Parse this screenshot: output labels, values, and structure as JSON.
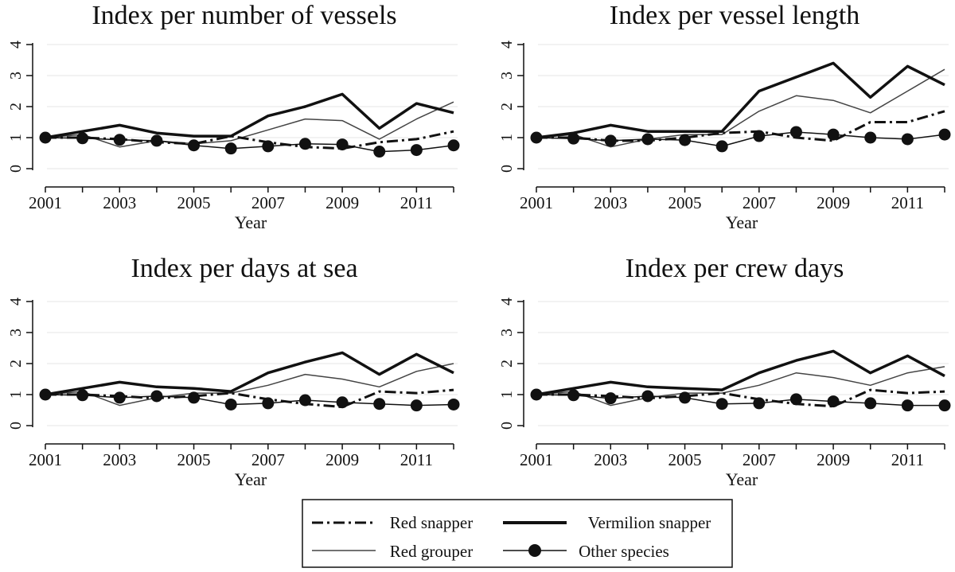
{
  "chart_data": [
    {
      "type": "line",
      "title": "Index per number of vessels",
      "xlabel": "Year",
      "ylabel": "",
      "x": [
        2001,
        2002,
        2003,
        2004,
        2005,
        2006,
        2007,
        2008,
        2009,
        2010,
        2011,
        2012
      ],
      "xticks": [
        "2001",
        "2003",
        "2005",
        "2007",
        "2009",
        "2011"
      ],
      "yticks": [
        "0",
        "1",
        "2",
        "3",
        "4"
      ],
      "ylim": [
        0,
        4
      ],
      "series": [
        {
          "name": "Red snapper",
          "values": [
            1.0,
            1.0,
            0.95,
            0.85,
            0.8,
            1.05,
            0.85,
            0.7,
            0.65,
            0.85,
            0.95,
            1.2
          ]
        },
        {
          "name": "Vermilion snapper",
          "values": [
            1.0,
            1.2,
            1.4,
            1.15,
            1.05,
            1.05,
            1.7,
            2.0,
            2.4,
            1.3,
            2.1,
            1.8
          ]
        },
        {
          "name": "Red grouper",
          "values": [
            1.0,
            1.1,
            0.7,
            0.9,
            0.8,
            0.9,
            1.25,
            1.6,
            1.55,
            0.95,
            1.6,
            2.15
          ]
        },
        {
          "name": "Other species",
          "values": [
            1.0,
            0.98,
            0.93,
            0.9,
            0.75,
            0.65,
            0.72,
            0.8,
            0.78,
            0.55,
            0.6,
            0.75
          ]
        }
      ]
    },
    {
      "type": "line",
      "title": "Index per vessel length",
      "xlabel": "Year",
      "ylabel": "",
      "x": [
        2001,
        2002,
        2003,
        2004,
        2005,
        2006,
        2007,
        2008,
        2009,
        2010,
        2011,
        2012
      ],
      "xticks": [
        "2001",
        "2003",
        "2005",
        "2007",
        "2009",
        "2011"
      ],
      "yticks": [
        "0",
        "1",
        "2",
        "3",
        "4"
      ],
      "ylim": [
        0,
        4
      ],
      "series": [
        {
          "name": "Red snapper",
          "values": [
            1.0,
            1.0,
            0.9,
            0.9,
            1.0,
            1.15,
            1.2,
            1.0,
            0.9,
            1.5,
            1.5,
            1.85
          ]
        },
        {
          "name": "Vermilion snapper",
          "values": [
            1.0,
            1.15,
            1.4,
            1.2,
            1.2,
            1.2,
            2.5,
            2.95,
            3.4,
            2.3,
            3.3,
            2.7
          ]
        },
        {
          "name": "Red grouper",
          "values": [
            1.0,
            1.1,
            0.7,
            0.95,
            1.1,
            1.1,
            1.85,
            2.35,
            2.2,
            1.8,
            2.5,
            3.2
          ]
        },
        {
          "name": "Other species",
          "values": [
            1.0,
            0.97,
            0.9,
            0.95,
            0.92,
            0.72,
            1.05,
            1.18,
            1.1,
            1.0,
            0.95,
            1.1
          ]
        }
      ]
    },
    {
      "type": "line",
      "title": "Index per days at sea",
      "xlabel": "Year",
      "ylabel": "",
      "x": [
        2001,
        2002,
        2003,
        2004,
        2005,
        2006,
        2007,
        2008,
        2009,
        2010,
        2011,
        2012
      ],
      "xticks": [
        "2001",
        "2003",
        "2005",
        "2007",
        "2009",
        "2011"
      ],
      "yticks": [
        "0",
        "1",
        "2",
        "3",
        "4"
      ],
      "ylim": [
        0,
        4
      ],
      "series": [
        {
          "name": "Red snapper",
          "values": [
            1.0,
            1.0,
            0.95,
            0.88,
            0.95,
            1.05,
            0.85,
            0.7,
            0.6,
            1.1,
            1.05,
            1.15
          ]
        },
        {
          "name": "Vermilion snapper",
          "values": [
            1.0,
            1.2,
            1.4,
            1.25,
            1.2,
            1.1,
            1.7,
            2.05,
            2.35,
            1.65,
            2.3,
            1.7
          ]
        },
        {
          "name": "Red grouper",
          "values": [
            1.0,
            1.1,
            0.65,
            0.9,
            1.05,
            1.05,
            1.3,
            1.65,
            1.5,
            1.25,
            1.75,
            2.0
          ]
        },
        {
          "name": "Other species",
          "values": [
            1.0,
            0.98,
            0.9,
            0.95,
            0.9,
            0.68,
            0.72,
            0.82,
            0.75,
            0.7,
            0.65,
            0.68
          ]
        }
      ]
    },
    {
      "type": "line",
      "title": "Index per crew days",
      "xlabel": "Year",
      "ylabel": "",
      "x": [
        2001,
        2002,
        2003,
        2004,
        2005,
        2006,
        2007,
        2008,
        2009,
        2010,
        2011,
        2012
      ],
      "xticks": [
        "2001",
        "2003",
        "2005",
        "2007",
        "2009",
        "2011"
      ],
      "yticks": [
        "0",
        "1",
        "2",
        "3",
        "4"
      ],
      "ylim": [
        0,
        4
      ],
      "series": [
        {
          "name": "Red snapper",
          "values": [
            1.0,
            1.0,
            0.95,
            0.88,
            0.95,
            1.05,
            0.85,
            0.7,
            0.62,
            1.15,
            1.05,
            1.1
          ]
        },
        {
          "name": "Vermilion snapper",
          "values": [
            1.0,
            1.2,
            1.4,
            1.25,
            1.2,
            1.15,
            1.7,
            2.1,
            2.4,
            1.7,
            2.25,
            1.6
          ]
        },
        {
          "name": "Red grouper",
          "values": [
            1.0,
            1.1,
            0.65,
            0.9,
            1.05,
            1.05,
            1.3,
            1.7,
            1.55,
            1.3,
            1.7,
            1.9
          ]
        },
        {
          "name": "Other species",
          "values": [
            1.0,
            0.98,
            0.88,
            0.95,
            0.9,
            0.7,
            0.72,
            0.85,
            0.78,
            0.72,
            0.65,
            0.65
          ]
        }
      ]
    }
  ],
  "legend": {
    "placement": "bottom",
    "items": [
      {
        "label": "Red snapper",
        "style": "dash-dot"
      },
      {
        "label": "Vermilion snapper",
        "style": "thick"
      },
      {
        "label": "Red grouper",
        "style": "thin"
      },
      {
        "label": "Other species",
        "style": "dots"
      }
    ]
  },
  "colors": {
    "line": "#111111",
    "grid": "#e6e6e6",
    "background": "#ffffff"
  }
}
